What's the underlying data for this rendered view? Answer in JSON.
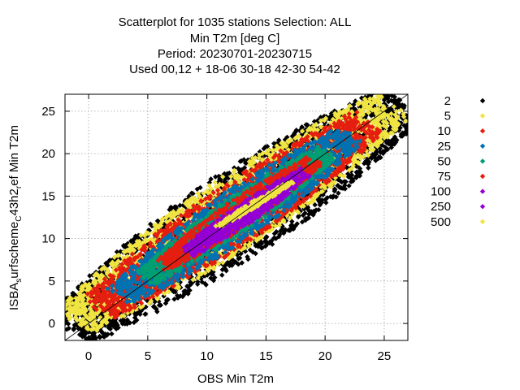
{
  "chart_data": {
    "type": "scatter",
    "title_lines": [
      "Scatterplot for 1035 stations Selection: ALL",
      "Min T2m [deg C]",
      "Period: 20230701-20230715",
      "Used  00,12  + 18-06 30-18 42-30 54-42"
    ],
    "xlabel": "OBS Min T2m",
    "ylabel_parts": [
      "ISBA",
      "s",
      "urfscheme",
      "C",
      "43h2",
      "r",
      "ef Min T2m"
    ],
    "xlim": [
      -2,
      27
    ],
    "ylim": [
      -2,
      27
    ],
    "x_ticks": [
      0,
      5,
      10,
      15,
      20,
      25
    ],
    "y_ticks": [
      0,
      5,
      10,
      15,
      20,
      25
    ],
    "grid": true,
    "diagonal": true,
    "legend_position": "right",
    "legend_entries": [
      {
        "label": "2",
        "color": "#000000"
      },
      {
        "label": "5",
        "color": "#f0e442"
      },
      {
        "label": "10",
        "color": "#e51e10"
      },
      {
        "label": "25",
        "color": "#0072b2"
      },
      {
        "label": "50",
        "color": "#009e73"
      },
      {
        "label": "75",
        "color": "#e51e10"
      },
      {
        "label": "100",
        "color": "#9400d3"
      },
      {
        "label": "250",
        "color": "#9400d3"
      },
      {
        "label": "500",
        "color": "#f0e442"
      }
    ],
    "density_bands": [
      {
        "min_count": 2,
        "color": "#000000",
        "center_start": [
          -1.5,
          -0.5
        ],
        "center_end": [
          26.5,
          26
        ],
        "half_width": 4.6
      },
      {
        "min_count": 5,
        "color": "#f0e442",
        "center_start": [
          -1,
          0.5
        ],
        "center_end": [
          25.5,
          25.5
        ],
        "half_width": 3.8
      },
      {
        "min_count": 10,
        "color": "#e51e10",
        "center_start": [
          1,
          2
        ],
        "center_end": [
          23.5,
          23.5
        ],
        "half_width": 3.2
      },
      {
        "min_count": 25,
        "color": "#0072b2",
        "center_start": [
          3,
          3.5
        ],
        "center_end": [
          22,
          22
        ],
        "half_width": 2.6
      },
      {
        "min_count": 50,
        "color": "#009e73",
        "center_start": [
          5,
          5.5
        ],
        "center_end": [
          20,
          20
        ],
        "half_width": 1.9
      },
      {
        "min_count": 75,
        "color": "#e51e10",
        "center_start": [
          6.5,
          7
        ],
        "center_end": [
          19,
          19
        ],
        "half_width": 1.5
      },
      {
        "min_count": 100,
        "color": "#9400d3",
        "center_start": [
          8.5,
          8.5
        ],
        "center_end": [
          18,
          17.5
        ],
        "half_width": 1.1
      },
      {
        "min_count": 250,
        "color": "#9400d3",
        "center_start": [
          10,
          10
        ],
        "center_end": [
          17,
          16.5
        ],
        "half_width": 0.7
      },
      {
        "min_count": 500,
        "color": "#f0e442",
        "center_start": [
          11,
          11.5
        ],
        "center_end": [
          17,
          16.5
        ],
        "half_width": 0.35
      }
    ]
  }
}
